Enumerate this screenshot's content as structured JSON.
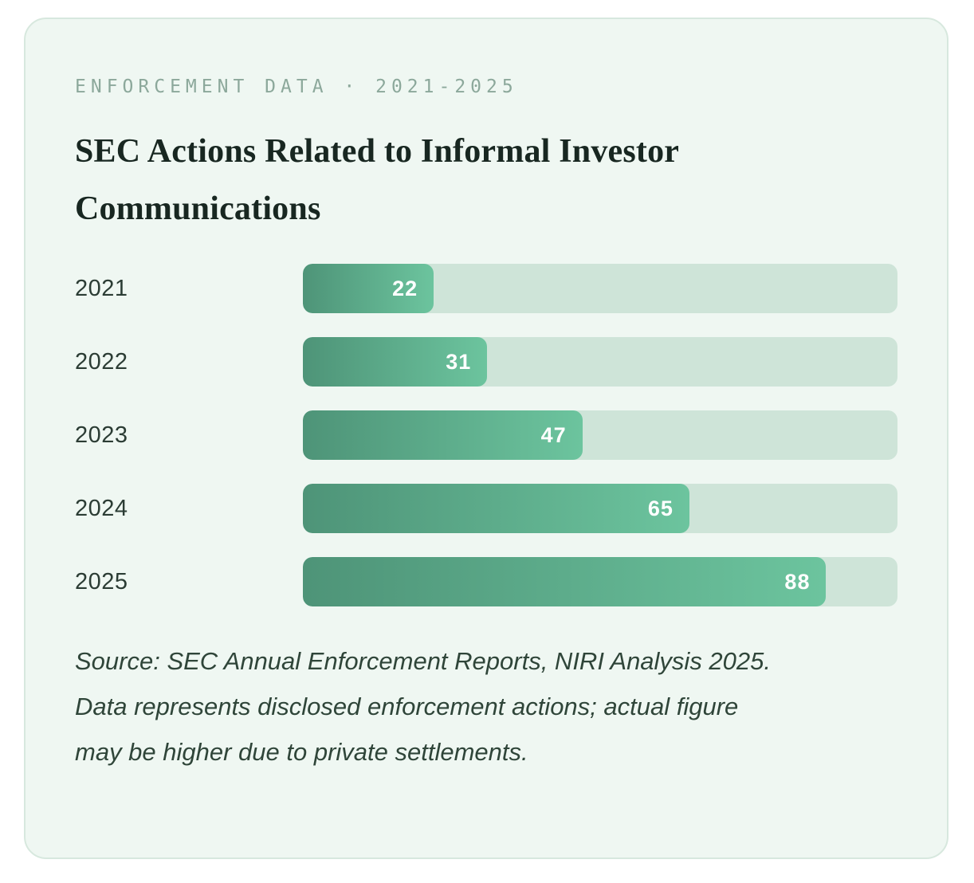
{
  "card": {
    "eyebrow": "ENFORCEMENT DATA · 2021-2025",
    "title": "SEC Actions Related to Informal Investor Communications",
    "source_lines": [
      "Source: SEC Annual Enforcement Reports, NIRI Analysis 2025.",
      "Data represents disclosed enforcement actions; actual figure",
      "may be higher due to private settlements."
    ]
  },
  "chart_data": {
    "type": "bar",
    "orientation": "horizontal",
    "title": "SEC Actions Related to Informal Investor Communications",
    "categories": [
      "2021",
      "2022",
      "2023",
      "2024",
      "2025"
    ],
    "values": [
      22,
      31,
      47,
      65,
      88
    ],
    "xlim": [
      0,
      100
    ],
    "value_labels": "inside-bar-right",
    "legend": "none",
    "grid": "off"
  },
  "colors": {
    "page_bg": "#ffffff",
    "card_bg": "#EFF7F2",
    "card_border": "#D7E8DE",
    "track": "#CEE4D8",
    "bar_gradient_start": "#4E9478",
    "bar_gradient_end": "#6CC49E",
    "value_text": "#FFFFFF",
    "year_label": "#2B3C34",
    "title_text": "#182721",
    "eyebrow_text": "#8CA89B",
    "source_text": "#2F4539"
  }
}
